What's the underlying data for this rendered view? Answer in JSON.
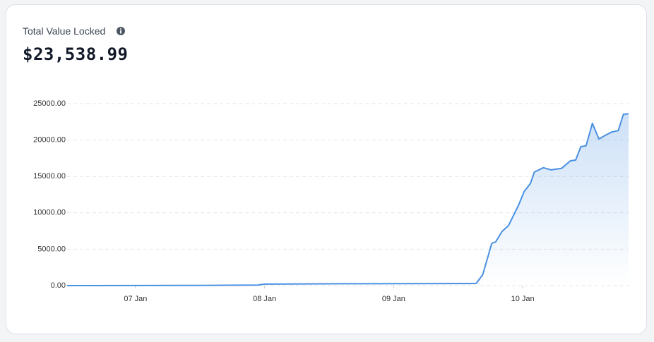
{
  "chart_data": {
    "type": "area",
    "title": "Total Value Locked",
    "current_value": "$23,538.99",
    "x": [
      6.47,
      7.5,
      7.95,
      8.0,
      8.6,
      9.6,
      9.64,
      9.69,
      9.76,
      9.79,
      9.84,
      9.89,
      9.97,
      10.01,
      10.06,
      10.09,
      10.16,
      10.22,
      10.3,
      10.37,
      10.41,
      10.45,
      10.49,
      10.54,
      10.59,
      10.64,
      10.69,
      10.74,
      10.78,
      10.82
    ],
    "series": [
      {
        "color": "#4a90e2",
        "values": [
          0,
          30,
          80,
          200,
          250,
          280,
          300,
          1500,
          5800,
          6000,
          7450,
          8250,
          11150,
          12900,
          14050,
          15600,
          16200,
          15900,
          16100,
          17150,
          17250,
          19100,
          19200,
          22300,
          20150,
          20650,
          21100,
          21300,
          23550,
          23600
        ]
      }
    ],
    "xlim": [
      6.47,
      10.82
    ],
    "xticks": [
      {
        "value": 7,
        "label": "07 Jan"
      },
      {
        "value": 8,
        "label": "08 Jan"
      },
      {
        "value": 9,
        "label": "09 Jan"
      },
      {
        "value": 10,
        "label": "10 Jan"
      }
    ],
    "ylim": [
      0,
      25000
    ],
    "yticks": [
      {
        "value": 0,
        "label": "0.00"
      },
      {
        "value": 5000,
        "label": "5000.00"
      },
      {
        "value": 10000,
        "label": "10000.00"
      },
      {
        "value": 15000,
        "label": "15000.00"
      },
      {
        "value": 20000,
        "label": "20000.00"
      },
      {
        "value": 25000,
        "label": "25000.00"
      }
    ],
    "grid": true
  }
}
